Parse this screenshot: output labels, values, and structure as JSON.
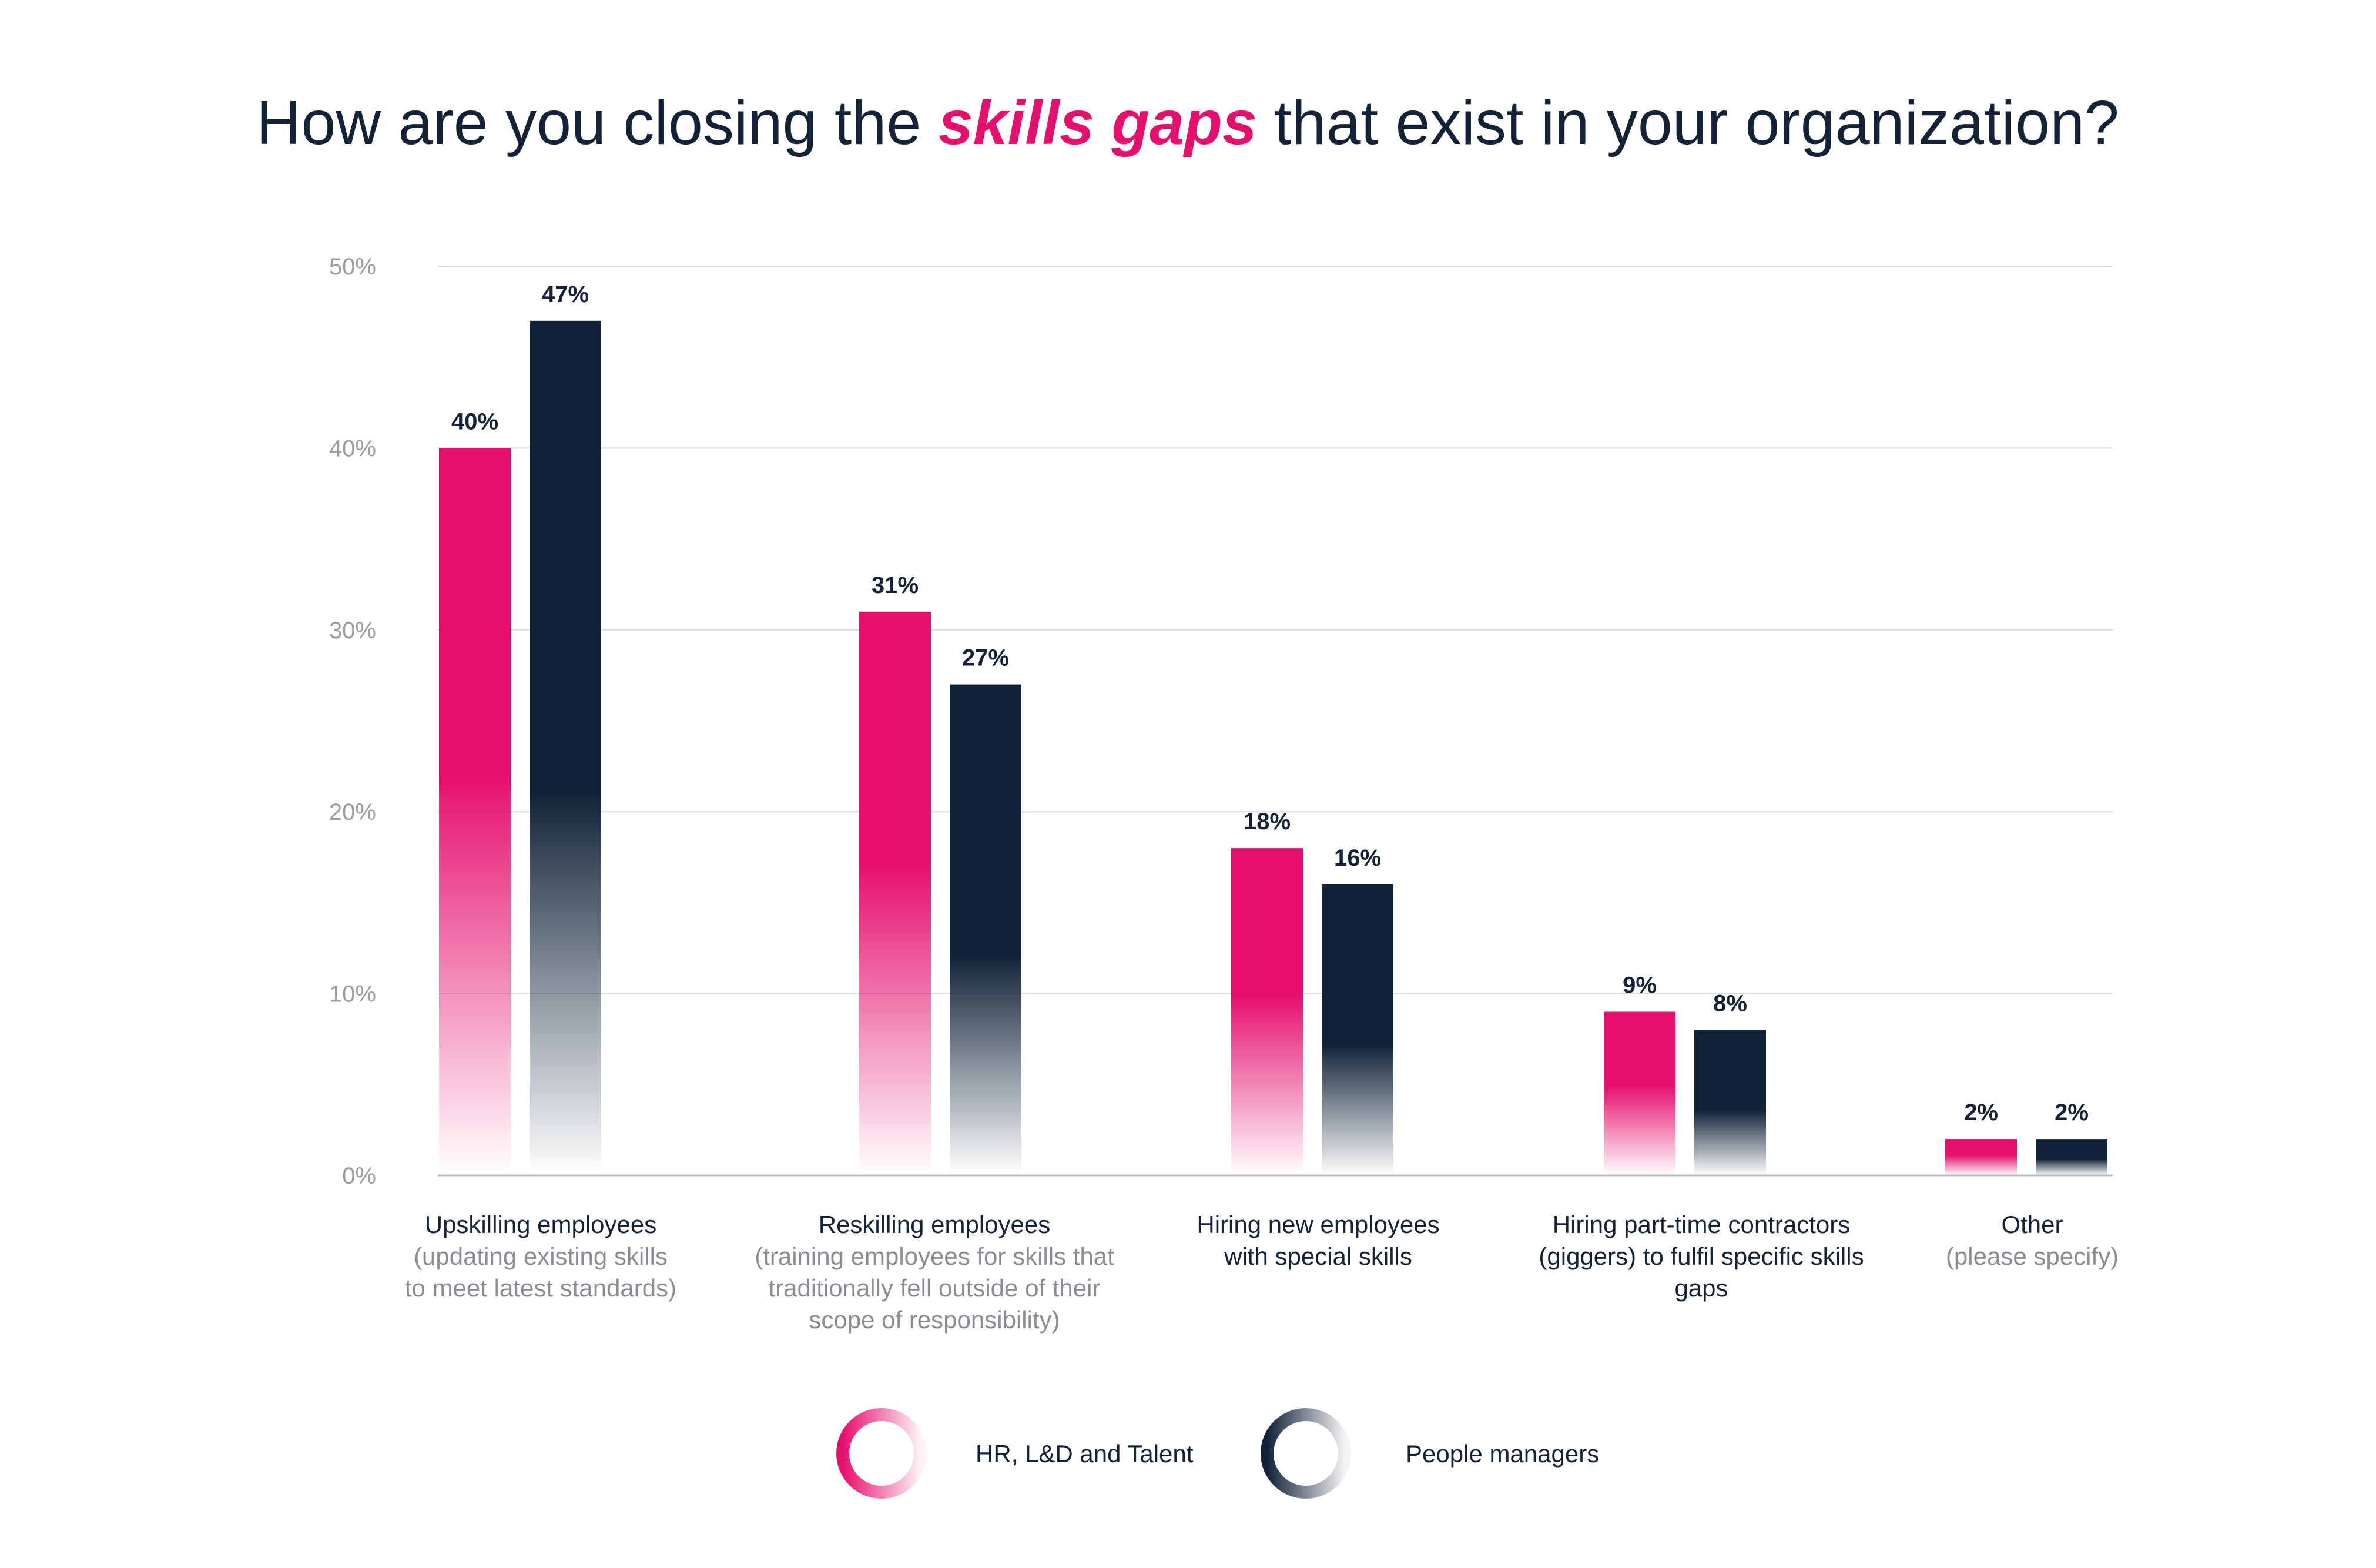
{
  "chart_data": {
    "type": "bar",
    "title_parts": [
      "How are you closing the ",
      "skills gaps",
      " that exist in your organization?"
    ],
    "y_ticks": [
      "0%",
      "10%",
      "20%",
      "30%",
      "40%",
      "50%"
    ],
    "ylim": [
      0,
      50
    ],
    "grid": true,
    "legend_position": "bottom",
    "categories": [
      {
        "label": "Upskilling employees",
        "sub": [
          "(updating existing skills",
          "to meet latest standards)"
        ]
      },
      {
        "label": "Reskilling employees",
        "sub": [
          "(training employees for skills that",
          "traditionally fell outside of their",
          "scope of responsibility)"
        ]
      },
      {
        "label": [
          "Hiring new employees",
          "with special skills"
        ],
        "sub": []
      },
      {
        "label": [
          "Hiring part-time contractors",
          "(giggers) to fulfil specific skills",
          "gaps"
        ],
        "sub": []
      },
      {
        "label": "Other",
        "sub": [
          "(please specify)"
        ]
      }
    ],
    "series": [
      {
        "name": "HR, L&D and Talent",
        "color": "#e5106e",
        "values": [
          40,
          31,
          18,
          9,
          2
        ],
        "labels": [
          "40%",
          "31%",
          "18%",
          "9%",
          "2%"
        ]
      },
      {
        "name": "People managers",
        "color": "#112238",
        "values": [
          47,
          27,
          16,
          8,
          2
        ],
        "labels": [
          "47%",
          "27%",
          "16%",
          "8%",
          "2%"
        ]
      }
    ]
  }
}
